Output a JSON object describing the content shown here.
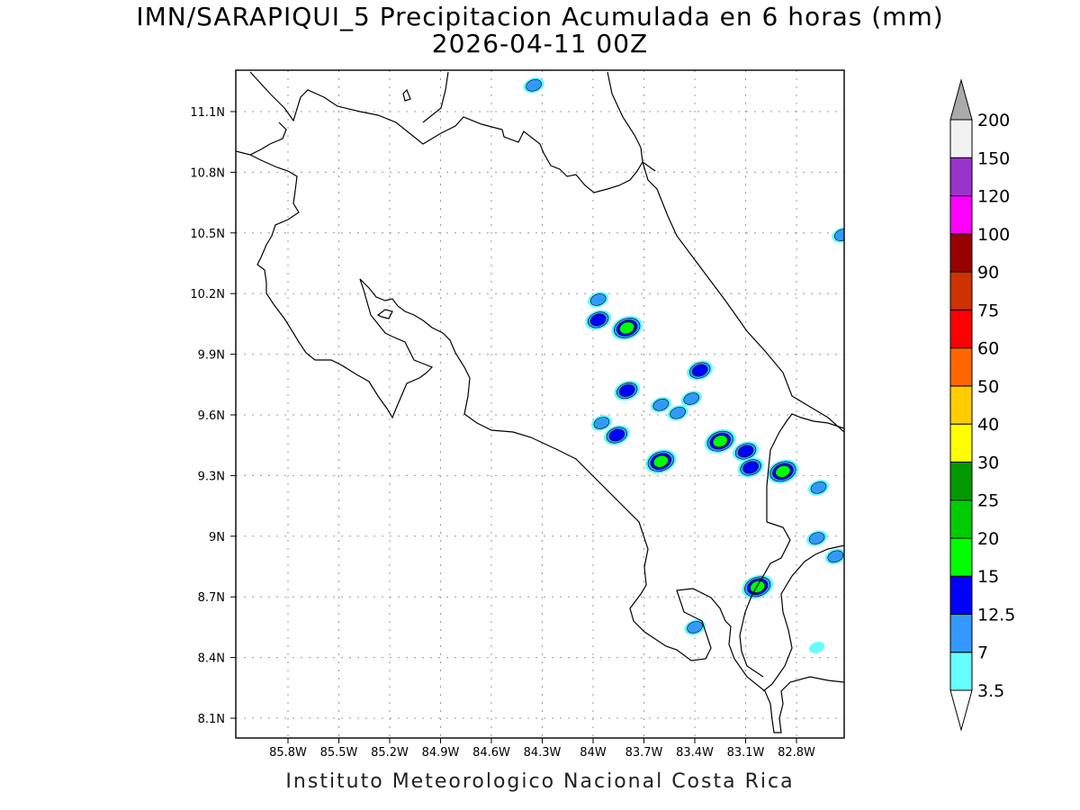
{
  "header": {
    "title_line1": "IMN/SARAPIQUI_5 Precipitacion Acumulada en 6 horas (mm)",
    "title_line2": "2026-04-11 00Z"
  },
  "footer": {
    "credit": "Instituto Meteorologico Nacional Costa Rica"
  },
  "map": {
    "lon_labels": [
      "85.8W",
      "85.5W",
      "85.2W",
      "84.9W",
      "84.6W",
      "84.3W",
      "84W",
      "83.7W",
      "83.4W",
      "83.1W",
      "82.8W"
    ],
    "lat_labels": [
      "11.1N",
      "10.8N",
      "10.5N",
      "10.2N",
      "9.9N",
      "9.6N",
      "9.3N",
      "9N",
      "8.7N",
      "8.4N",
      "8.1N"
    ],
    "grid_lines": true
  },
  "colorbar": {
    "levels": [
      "3.5",
      "7",
      "12.5",
      "15",
      "20",
      "25",
      "30",
      "40",
      "50",
      "60",
      "75",
      "90",
      "100",
      "120",
      "150",
      "200"
    ],
    "colors": [
      "#66ffff",
      "#3399ff",
      "#0000ff",
      "#00ff00",
      "#00cc00",
      "#009900",
      "#ffff00",
      "#ffcc00",
      "#ff6600",
      "#ff0000",
      "#cc3300",
      "#990000",
      "#ff00ff",
      "#9933cc",
      "#f2f2f2"
    ],
    "over_color": "#aaaaaa",
    "under_color": "#ffffff"
  },
  "precip_cells": [
    {
      "lon": -84.35,
      "lat": 11.23,
      "level": 1
    },
    {
      "lon": -83.97,
      "lat": 10.17,
      "level": 1
    },
    {
      "lon": -83.97,
      "lat": 10.07,
      "level": 2
    },
    {
      "lon": -83.8,
      "lat": 10.03,
      "level": 3
    },
    {
      "lon": -83.8,
      "lat": 9.72,
      "level": 2
    },
    {
      "lon": -83.37,
      "lat": 9.82,
      "level": 2
    },
    {
      "lon": -83.6,
      "lat": 9.65,
      "level": 1
    },
    {
      "lon": -83.42,
      "lat": 9.68,
      "level": 1
    },
    {
      "lon": -83.5,
      "lat": 9.61,
      "level": 1
    },
    {
      "lon": -83.95,
      "lat": 9.56,
      "level": 1
    },
    {
      "lon": -83.86,
      "lat": 9.5,
      "level": 2
    },
    {
      "lon": -83.6,
      "lat": 9.37,
      "level": 3
    },
    {
      "lon": -83.25,
      "lat": 9.47,
      "level": 3
    },
    {
      "lon": -83.1,
      "lat": 9.42,
      "level": 2
    },
    {
      "lon": -83.07,
      "lat": 9.34,
      "level": 2
    },
    {
      "lon": -82.88,
      "lat": 9.32,
      "level": 3
    },
    {
      "lon": -82.67,
      "lat": 9.24,
      "level": 1
    },
    {
      "lon": -82.68,
      "lat": 8.99,
      "level": 1
    },
    {
      "lon": -82.57,
      "lat": 8.9,
      "level": 1
    },
    {
      "lon": -83.03,
      "lat": 8.75,
      "level": 3
    },
    {
      "lon": -83.4,
      "lat": 8.55,
      "level": 1
    },
    {
      "lon": -82.53,
      "lat": 10.49,
      "level": 1
    },
    {
      "lon": -82.68,
      "lat": 8.45,
      "level": 0
    }
  ]
}
